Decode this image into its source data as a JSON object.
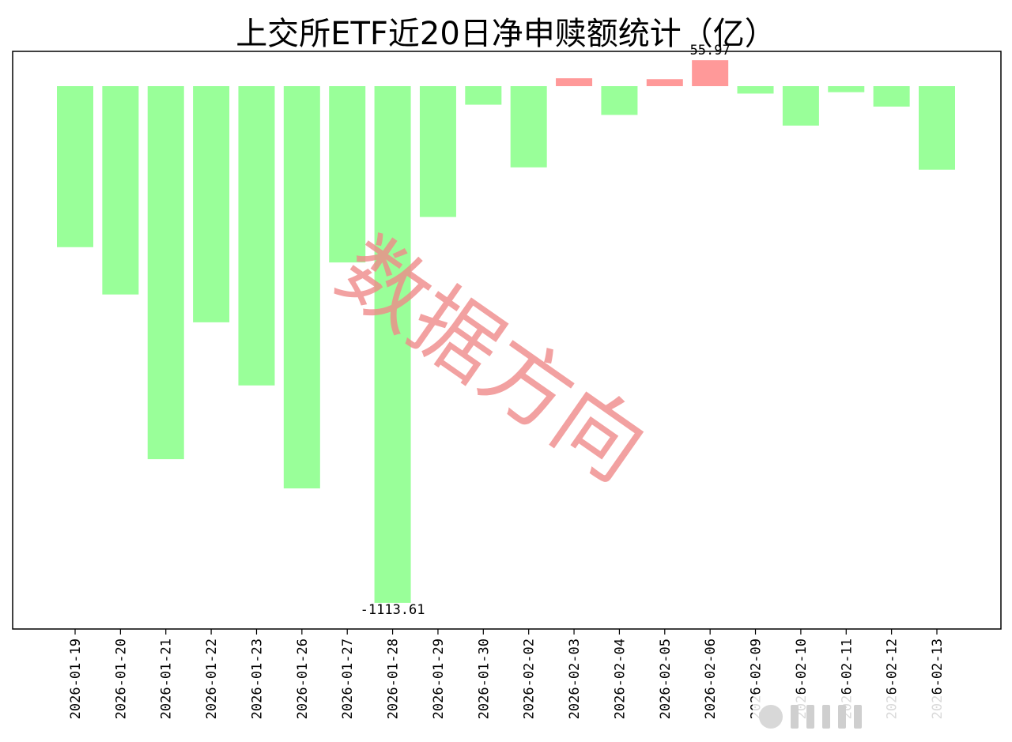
{
  "chart_data": {
    "type": "bar",
    "title": "上交所ETF近20日净申赎额统计（亿）",
    "xlabel": "",
    "ylabel": "",
    "categories": [
      "2026-01-19",
      "2026-01-20",
      "2026-01-21",
      "2026-01-22",
      "2026-01-23",
      "2026-01-26",
      "2026-01-27",
      "2026-01-28",
      "2026-01-29",
      "2026-01-30",
      "2026-02-02",
      "2026-02-03",
      "2026-02-04",
      "2026-02-05",
      "2026-02-06",
      "2026-02-09",
      "2026-02-10",
      "2026-02-11",
      "2026-02-12",
      "2026-02-13"
    ],
    "values": [
      -347,
      -449,
      -804,
      -509,
      -645,
      -867,
      -380,
      -1113.61,
      -282,
      -40,
      -175,
      17,
      -62,
      15,
      55.97,
      -16,
      -85,
      -13,
      -44,
      -180
    ],
    "ylim": [
      -1170,
      75
    ],
    "annotations": [
      {
        "category": "2026-01-28",
        "text": "-1113.61"
      },
      {
        "category": "2026-02-06",
        "text": "55.97"
      }
    ],
    "colors": {
      "negative": "#99ff99",
      "positive": "#ff9999"
    },
    "grid": false,
    "legend": "none"
  },
  "watermark": {
    "text": "数据方向"
  }
}
